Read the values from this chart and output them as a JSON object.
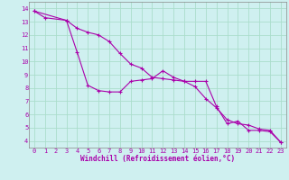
{
  "xlabel": "Windchill (Refroidissement éolien,°C)",
  "bg_color": "#cff0f0",
  "grid_color": "#aaddcc",
  "line_color": "#aa00aa",
  "xlim": [
    -0.5,
    23.5
  ],
  "ylim": [
    3.5,
    14.5
  ],
  "xticks": [
    0,
    1,
    2,
    3,
    4,
    5,
    6,
    7,
    8,
    9,
    10,
    11,
    12,
    13,
    14,
    15,
    16,
    17,
    18,
    19,
    20,
    21,
    22,
    23
  ],
  "yticks": [
    4,
    5,
    6,
    7,
    8,
    9,
    10,
    11,
    12,
    13,
    14
  ],
  "line1_x": [
    0,
    1,
    3,
    4,
    5,
    6,
    7,
    8,
    9,
    10,
    11,
    12,
    13,
    14,
    15,
    16,
    17,
    18,
    19,
    20,
    21,
    22,
    23
  ],
  "line1_y": [
    13.8,
    13.3,
    13.1,
    10.7,
    8.2,
    7.8,
    7.7,
    7.7,
    8.5,
    8.6,
    8.7,
    9.3,
    8.8,
    8.5,
    8.5,
    8.5,
    6.6,
    5.3,
    5.5,
    4.8,
    4.8,
    4.7,
    3.9
  ],
  "line2_x": [
    0,
    3,
    4,
    5,
    6,
    7,
    8,
    9,
    10,
    11,
    12,
    13,
    14,
    15,
    16,
    17,
    18,
    19,
    20,
    21,
    22,
    23
  ],
  "line2_y": [
    13.8,
    13.1,
    12.5,
    12.2,
    12.0,
    11.5,
    10.6,
    9.8,
    9.5,
    8.8,
    8.7,
    8.6,
    8.5,
    8.1,
    7.2,
    6.5,
    5.6,
    5.3,
    5.2,
    4.9,
    4.8,
    3.9
  ],
  "tick_fontsize": 5.0,
  "xlabel_fontsize": 5.5
}
